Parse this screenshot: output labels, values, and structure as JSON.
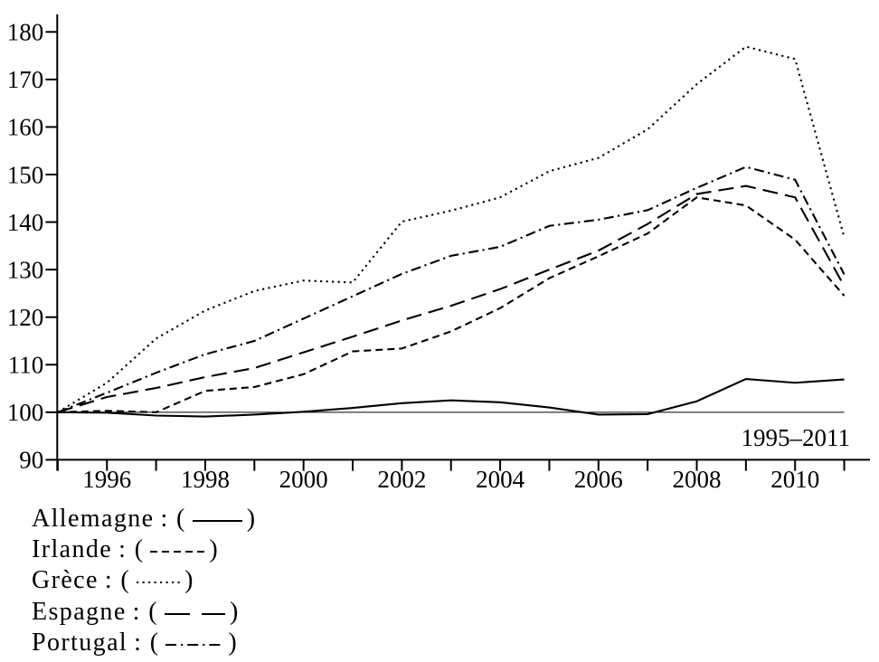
{
  "chart_data": {
    "type": "line",
    "title": "",
    "xlabel": "",
    "ylabel": "",
    "annotation": "1995–2011",
    "x": [
      1995,
      1996,
      1997,
      1998,
      1999,
      2000,
      2001,
      2002,
      2003,
      2004,
      2005,
      2006,
      2007,
      2008,
      2009,
      2010,
      2011
    ],
    "xlim": [
      1995,
      2011
    ],
    "ylim": [
      90,
      180
    ],
    "yticks": [
      90,
      100,
      110,
      120,
      130,
      140,
      150,
      160,
      170,
      180
    ],
    "xticks_labeled": [
      1996,
      1998,
      2000,
      2002,
      2004,
      2006,
      2008,
      2010
    ],
    "baseline": 100,
    "grid": false,
    "legend_position": "below-left",
    "ink_color": "#000000",
    "background_color": "#ffffff",
    "series": [
      {
        "name": "Allemagne",
        "label": "Allemagne",
        "style": "solid",
        "dash": "",
        "sample_width": 57,
        "values": [
          100,
          99.9,
          99.3,
          99.1,
          99.5,
          100.1,
          100.9,
          101.9,
          102.5,
          102.1,
          101.0,
          99.5,
          99.6,
          102.3,
          107.0,
          106.2,
          106.9
        ]
      },
      {
        "name": "Irlande",
        "label": "Irlande",
        "style": "dashed-short",
        "dash": "8 5",
        "sample_width": 62,
        "values": [
          100,
          100.3,
          100.0,
          104.5,
          105.3,
          108.0,
          112.8,
          113.4,
          117.0,
          121.9,
          128.2,
          132.8,
          137.6,
          145.2,
          143.5,
          136.3,
          124.5
        ]
      },
      {
        "name": "Grèce",
        "label": "Grèce",
        "style": "dotted",
        "dash": "2.2 4.3",
        "sample_width": 50,
        "values": [
          100,
          106.2,
          115.5,
          121.4,
          125.5,
          127.7,
          127.3,
          140.1,
          142.4,
          145.2,
          150.7,
          153.5,
          159.5,
          169.0,
          176.9,
          174.3,
          136.8
        ]
      },
      {
        "name": "Espagne",
        "label": "Espagne",
        "style": "dashed-long",
        "dash": "17 8",
        "sample_dash": "28 13",
        "sample_width": 69,
        "values": [
          100,
          103.2,
          105.1,
          107.4,
          109.3,
          112.6,
          115.9,
          119.3,
          122.4,
          125.9,
          130.0,
          134.0,
          139.6,
          145.9,
          147.6,
          145.2,
          126.5
        ]
      },
      {
        "name": "Portugal",
        "label": "Portugal",
        "style": "dash-dot",
        "dash": "11 4.5 2.2 4.5",
        "sample_dash": "12 5 2.2 5",
        "sample_width": 66,
        "values": [
          100,
          104.1,
          108.3,
          112.2,
          115.0,
          119.7,
          124.4,
          129.1,
          132.9,
          134.8,
          139.2,
          140.5,
          142.5,
          147.2,
          151.6,
          148.9,
          129.0
        ]
      }
    ]
  },
  "legend": {
    "colon": " : ",
    "open": "(",
    "close": ")"
  }
}
